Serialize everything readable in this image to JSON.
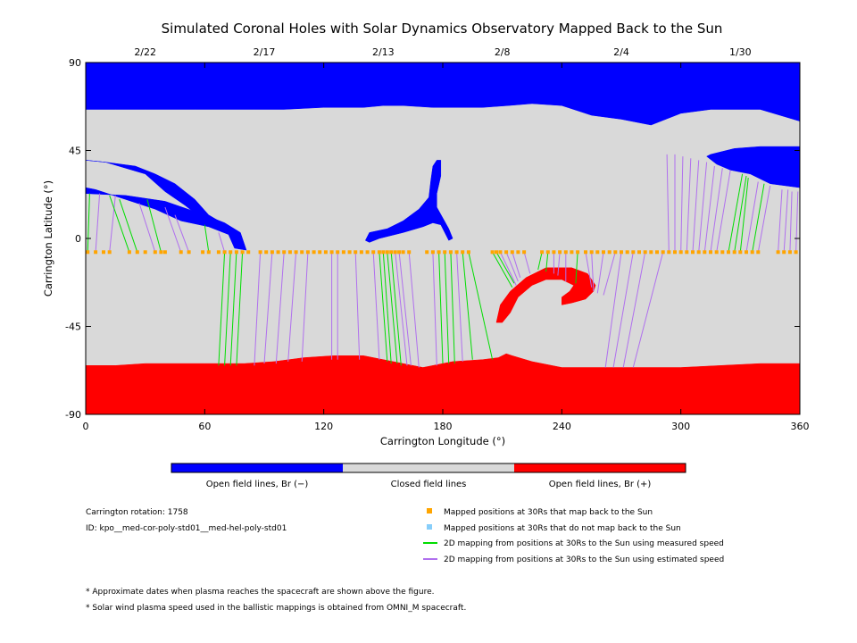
{
  "chart_data": {
    "type": "map",
    "title": "Simulated Coronal Holes with Solar Dynamics Observatory Mapped Back to the Sun",
    "xlabel": "Carrington Longitude (°)",
    "ylabel": "Carrington Latitude (°)",
    "xlim": [
      0,
      360
    ],
    "ylim": [
      -90,
      90
    ],
    "x_ticks": [
      "0",
      "60",
      "120",
      "180",
      "240",
      "300",
      "360"
    ],
    "y_ticks": [
      "90",
      "45",
      "0",
      "-45",
      "-90"
    ],
    "top_axis_dates": [
      {
        "label": "2/22",
        "lon": 30
      },
      {
        "label": "2/17",
        "lon": 90
      },
      {
        "label": "2/13",
        "lon": 150
      },
      {
        "label": "2/8",
        "lon": 210
      },
      {
        "label": "2/4",
        "lon": 270
      },
      {
        "label": "1/30",
        "lon": 330
      }
    ],
    "colors": {
      "open_negative": "#0000ff",
      "closed": "#d9d9d9",
      "open_positive": "#ff0000",
      "mapped_back": "#ffa500",
      "not_mapped": "#87cefa",
      "measured_speed": "#00dd00",
      "estimated_speed": "#b070ee"
    },
    "spacecraft_latitude": -7,
    "mapped_points_lon": [
      1,
      5,
      9,
      12,
      22,
      26,
      30,
      35,
      38,
      40,
      48,
      52,
      59,
      62,
      67,
      70,
      73,
      76,
      79,
      82,
      88,
      91,
      94,
      97,
      100,
      103,
      106,
      109,
      112,
      115,
      118,
      121,
      124,
      127,
      130,
      133,
      136,
      139,
      142,
      145,
      148,
      150,
      152,
      154,
      156,
      158,
      160,
      163,
      172,
      175,
      178,
      181,
      184,
      187,
      190,
      193,
      205,
      207,
      209,
      212,
      215,
      218,
      221,
      230,
      233,
      236,
      239,
      242,
      245,
      248,
      252,
      255,
      258,
      261,
      264,
      267,
      270,
      273,
      276,
      279,
      282,
      285,
      288,
      291,
      294,
      297,
      300,
      303,
      306,
      309,
      312,
      315,
      318,
      321,
      324,
      327,
      330,
      333,
      336,
      339,
      349,
      352,
      355,
      358
    ],
    "footpoint_lines": [
      {
        "from": 1,
        "to": 2,
        "lat": 23,
        "speed": "measured"
      },
      {
        "from": 5,
        "to": 7,
        "lat": 23,
        "speed": "estimated"
      },
      {
        "from": 12,
        "to": 15,
        "lat": 22,
        "speed": "estimated"
      },
      {
        "from": 22,
        "to": 12,
        "lat": 22,
        "speed": "measured"
      },
      {
        "from": 26,
        "to": 17,
        "lat": 20,
        "speed": "measured"
      },
      {
        "from": 35,
        "to": 27,
        "lat": 18,
        "speed": "estimated"
      },
      {
        "from": 38,
        "to": 31,
        "lat": 20,
        "speed": "measured"
      },
      {
        "from": 48,
        "to": 40,
        "lat": 16,
        "speed": "estimated"
      },
      {
        "from": 52,
        "to": 45,
        "lat": 12,
        "speed": "estimated"
      },
      {
        "from": 62,
        "to": 60,
        "lat": 7,
        "speed": "measured"
      },
      {
        "from": 70,
        "to": 67,
        "lat": 3,
        "speed": "estimated"
      },
      {
        "from": 70,
        "to": 67,
        "lat": -65,
        "speed": "measured"
      },
      {
        "from": 73,
        "to": 70,
        "lat": -65,
        "speed": "measured"
      },
      {
        "from": 76,
        "to": 73,
        "lat": -65,
        "speed": "measured"
      },
      {
        "from": 79,
        "to": 76,
        "lat": -65,
        "speed": "measured"
      },
      {
        "from": 88,
        "to": 85,
        "lat": -65,
        "speed": "estimated"
      },
      {
        "from": 94,
        "to": 90,
        "lat": -64,
        "speed": "estimated"
      },
      {
        "from": 100,
        "to": 96,
        "lat": -64,
        "speed": "estimated"
      },
      {
        "from": 106,
        "to": 102,
        "lat": -63,
        "speed": "estimated"
      },
      {
        "from": 112,
        "to": 109,
        "lat": -63,
        "speed": "estimated"
      },
      {
        "from": 124,
        "to": 124,
        "lat": -62,
        "speed": "estimated"
      },
      {
        "from": 127,
        "to": 127,
        "lat": -62,
        "speed": "estimated"
      },
      {
        "from": 136,
        "to": 138,
        "lat": -62,
        "speed": "estimated"
      },
      {
        "from": 145,
        "to": 148,
        "lat": -62,
        "speed": "estimated"
      },
      {
        "from": 148,
        "to": 152,
        "lat": -63,
        "speed": "measured"
      },
      {
        "from": 150,
        "to": 154,
        "lat": -64,
        "speed": "measured"
      },
      {
        "from": 152,
        "to": 157,
        "lat": -64,
        "speed": "measured"
      },
      {
        "from": 154,
        "to": 159,
        "lat": -65,
        "speed": "measured"
      },
      {
        "from": 156,
        "to": 162,
        "lat": -65,
        "speed": "estimated"
      },
      {
        "from": 158,
        "to": 164,
        "lat": -65,
        "speed": "estimated"
      },
      {
        "from": 163,
        "to": 168,
        "lat": -66,
        "speed": "estimated"
      },
      {
        "from": 175,
        "to": 177,
        "lat": -65,
        "speed": "estimated"
      },
      {
        "from": 178,
        "to": 180,
        "lat": -64,
        "speed": "measured"
      },
      {
        "from": 181,
        "to": 183,
        "lat": -64,
        "speed": "measured"
      },
      {
        "from": 184,
        "to": 186,
        "lat": -64,
        "speed": "measured"
      },
      {
        "from": 187,
        "to": 190,
        "lat": -63,
        "speed": "estimated"
      },
      {
        "from": 190,
        "to": 195,
        "lat": -62,
        "speed": "measured"
      },
      {
        "from": 193,
        "to": 205,
        "lat": -62,
        "speed": "measured"
      },
      {
        "from": 205,
        "to": 215,
        "lat": -25,
        "speed": "measured"
      },
      {
        "from": 207,
        "to": 216,
        "lat": -23,
        "speed": "measured"
      },
      {
        "from": 209,
        "to": 217,
        "lat": -24,
        "speed": "estimated"
      },
      {
        "from": 212,
        "to": 218,
        "lat": -22,
        "speed": "estimated"
      },
      {
        "from": 215,
        "to": 219,
        "lat": -20,
        "speed": "estimated"
      },
      {
        "from": 221,
        "to": 224,
        "lat": -18,
        "speed": "estimated"
      },
      {
        "from": 230,
        "to": 228,
        "lat": -16,
        "speed": "measured"
      },
      {
        "from": 233,
        "to": 232,
        "lat": -17,
        "speed": "measured"
      },
      {
        "from": 236,
        "to": 236,
        "lat": -18,
        "speed": "estimated"
      },
      {
        "from": 239,
        "to": 238,
        "lat": -19,
        "speed": "estimated"
      },
      {
        "from": 242,
        "to": 242,
        "lat": -22,
        "speed": "estimated"
      },
      {
        "from": 248,
        "to": 247,
        "lat": -23,
        "speed": "measured"
      },
      {
        "from": 252,
        "to": 255,
        "lat": -25,
        "speed": "estimated"
      },
      {
        "from": 255,
        "to": 256,
        "lat": -27,
        "speed": "estimated"
      },
      {
        "from": 261,
        "to": 258,
        "lat": -28,
        "speed": "estimated"
      },
      {
        "from": 267,
        "to": 261,
        "lat": -29,
        "speed": "estimated"
      },
      {
        "from": 270,
        "to": 262,
        "lat": -66,
        "speed": "estimated"
      },
      {
        "from": 276,
        "to": 266,
        "lat": -66,
        "speed": "estimated"
      },
      {
        "from": 282,
        "to": 271,
        "lat": -66,
        "speed": "estimated"
      },
      {
        "from": 291,
        "to": 276,
        "lat": -66,
        "speed": "estimated"
      },
      {
        "from": 294,
        "to": 293,
        "lat": 43,
        "speed": "estimated"
      },
      {
        "from": 297,
        "to": 297,
        "lat": 43,
        "speed": "estimated"
      },
      {
        "from": 300,
        "to": 301,
        "lat": 42,
        "speed": "estimated"
      },
      {
        "from": 303,
        "to": 305,
        "lat": 41,
        "speed": "estimated"
      },
      {
        "from": 306,
        "to": 309,
        "lat": 40,
        "speed": "estimated"
      },
      {
        "from": 309,
        "to": 313,
        "lat": 39,
        "speed": "estimated"
      },
      {
        "from": 312,
        "to": 317,
        "lat": 37,
        "speed": "estimated"
      },
      {
        "from": 315,
        "to": 321,
        "lat": 36,
        "speed": "estimated"
      },
      {
        "from": 318,
        "to": 325,
        "lat": 35,
        "speed": "estimated"
      },
      {
        "from": 324,
        "to": 331,
        "lat": 33,
        "speed": "measured"
      },
      {
        "from": 327,
        "to": 333,
        "lat": 32,
        "speed": "measured"
      },
      {
        "from": 330,
        "to": 334,
        "lat": 31,
        "speed": "measured"
      },
      {
        "from": 333,
        "to": 339,
        "lat": 29,
        "speed": "estimated"
      },
      {
        "from": 336,
        "to": 342,
        "lat": 28,
        "speed": "measured"
      },
      {
        "from": 339,
        "to": 345,
        "lat": 27,
        "speed": "estimated"
      },
      {
        "from": 349,
        "to": 351,
        "lat": 25,
        "speed": "estimated"
      },
      {
        "from": 352,
        "to": 354,
        "lat": 25,
        "speed": "estimated"
      },
      {
        "from": 355,
        "to": 356,
        "lat": 24,
        "speed": "estimated"
      },
      {
        "from": 358,
        "to": 359,
        "lat": 24,
        "speed": "estimated"
      }
    ],
    "regions": {
      "north_polar_hole": [
        [
          0,
          90
        ],
        [
          360,
          90
        ],
        [
          360,
          26
        ],
        [
          345,
          28
        ],
        [
          335,
          33
        ],
        [
          325,
          35
        ],
        [
          318,
          38
        ],
        [
          313,
          42
        ],
        [
          315,
          43
        ],
        [
          327,
          46
        ],
        [
          340,
          47
        ],
        [
          350,
          47
        ],
        [
          360,
          47
        ],
        [
          360,
          60
        ],
        [
          340,
          66
        ],
        [
          315,
          66
        ],
        [
          300,
          64
        ],
        [
          285,
          58
        ],
        [
          270,
          61
        ],
        [
          255,
          63
        ],
        [
          240,
          68
        ],
        [
          225,
          69
        ],
        [
          213,
          68
        ],
        [
          200,
          67
        ],
        [
          175,
          67
        ],
        [
          160,
          68
        ],
        [
          150,
          68
        ],
        [
          140,
          67
        ],
        [
          120,
          67
        ],
        [
          100,
          66
        ],
        [
          85,
          66
        ],
        [
          70,
          66
        ],
        [
          55,
          66
        ],
        [
          30,
          66
        ],
        [
          15,
          66
        ],
        [
          0,
          66
        ]
      ],
      "north_polar_lobe": [
        [
          0,
          40
        ],
        [
          0,
          23
        ],
        [
          20,
          22
        ],
        [
          40,
          19
        ],
        [
          60,
          12
        ],
        [
          70,
          8
        ],
        [
          78,
          3
        ],
        [
          81,
          -6
        ],
        [
          75,
          -5
        ],
        [
          72,
          2
        ],
        [
          62,
          6
        ],
        [
          48,
          9
        ],
        [
          35,
          15
        ],
        [
          20,
          20
        ],
        [
          5,
          25
        ],
        [
          0,
          26
        ],
        [
          0,
          40
        ],
        [
          10,
          39
        ],
        [
          25,
          37
        ],
        [
          35,
          33
        ],
        [
          45,
          28
        ],
        [
          55,
          20
        ],
        [
          62,
          12
        ],
        [
          72,
          6
        ],
        [
          80,
          -3
        ],
        [
          72,
          4
        ],
        [
          60,
          9
        ],
        [
          50,
          17
        ],
        [
          40,
          24
        ],
        [
          30,
          33
        ],
        [
          20,
          36
        ],
        [
          10,
          39
        ]
      ],
      "mid_hole": [
        [
          141,
          -1
        ],
        [
          143,
          3
        ],
        [
          152,
          5
        ],
        [
          160,
          9
        ],
        [
          168,
          15
        ],
        [
          173,
          21
        ],
        [
          174,
          30
        ],
        [
          175,
          37
        ],
        [
          177,
          40
        ],
        [
          179,
          40
        ],
        [
          179,
          32
        ],
        [
          177,
          23
        ],
        [
          177,
          16
        ],
        [
          183,
          5
        ],
        [
          185,
          0
        ],
        [
          183,
          -1
        ],
        [
          179,
          7
        ],
        [
          175,
          8
        ],
        [
          170,
          6
        ],
        [
          160,
          3
        ],
        [
          148,
          0
        ],
        [
          143,
          -2
        ]
      ],
      "south_polar_hole": [
        [
          0,
          -90
        ],
        [
          360,
          -90
        ],
        [
          360,
          -64
        ],
        [
          340,
          -64
        ],
        [
          320,
          -65
        ],
        [
          300,
          -66
        ],
        [
          270,
          -66
        ],
        [
          240,
          -66
        ],
        [
          225,
          -63
        ],
        [
          215,
          -60
        ],
        [
          212,
          -59
        ],
        [
          208,
          -61
        ],
        [
          200,
          -62
        ],
        [
          185,
          -63
        ],
        [
          170,
          -66
        ],
        [
          155,
          -63
        ],
        [
          140,
          -60
        ],
        [
          125,
          -60
        ],
        [
          110,
          -61
        ],
        [
          95,
          -63
        ],
        [
          80,
          -64
        ],
        [
          60,
          -64
        ],
        [
          30,
          -64
        ],
        [
          15,
          -65
        ],
        [
          0,
          -65
        ]
      ],
      "mid_positive_hole": [
        [
          207,
          -43
        ],
        [
          209,
          -34
        ],
        [
          214,
          -27
        ],
        [
          222,
          -20
        ],
        [
          232,
          -15
        ],
        [
          245,
          -15
        ],
        [
          253,
          -18
        ],
        [
          257,
          -24
        ],
        [
          256,
          -27
        ],
        [
          252,
          -31
        ],
        [
          245,
          -33
        ],
        [
          240,
          -34
        ],
        [
          240,
          -30
        ],
        [
          244,
          -27
        ],
        [
          246,
          -24
        ],
        [
          240,
          -21
        ],
        [
          232,
          -21
        ],
        [
          225,
          -24
        ],
        [
          218,
          -30
        ],
        [
          214,
          -38
        ],
        [
          210,
          -43
        ]
      ]
    },
    "colorbar_labels": [
      "Open field lines, Br (−)",
      "Closed field lines",
      "Open field lines, Br (+)"
    ],
    "legend_items": [
      "Mapped positions at 30Rs that map back to the Sun",
      "Mapped positions at 30Rs that do not map back to the Sun",
      "2D mapping from positions at 30Rs to the Sun using measured speed",
      "2D mapping from positions at 30Rs to the Sun using estimated speed"
    ],
    "info_lines": [
      "Carrington rotation: 1758",
      "ID: kpo__med-cor-poly-std01__med-hel-poly-std01"
    ],
    "footnotes": [
      "* Approximate dates when plasma reaches the spacecraft are shown above the figure.",
      "* Solar wind plasma speed used in the ballistic mappings is obtained from OMNI_M spacecraft."
    ]
  }
}
